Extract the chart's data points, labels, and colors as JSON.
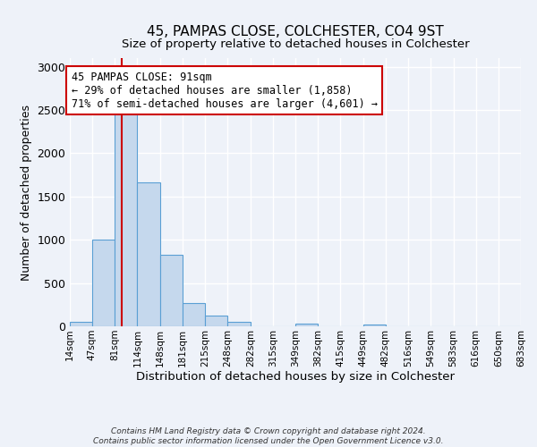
{
  "title": "45, PAMPAS CLOSE, COLCHESTER, CO4 9ST",
  "subtitle": "Size of property relative to detached houses in Colchester",
  "xlabel": "Distribution of detached houses by size in Colchester",
  "ylabel": "Number of detached properties",
  "footnote1": "Contains HM Land Registry data © Crown copyright and database right 2024.",
  "footnote2": "Contains public sector information licensed under the Open Government Licence v3.0.",
  "bar_edges": [
    14,
    47,
    81,
    114,
    148,
    181,
    215,
    248,
    282,
    315,
    349,
    382,
    415,
    449,
    482,
    516,
    549,
    583,
    616,
    650,
    683
  ],
  "bar_heights": [
    55,
    1000,
    2480,
    1660,
    830,
    270,
    125,
    55,
    0,
    0,
    35,
    0,
    0,
    20,
    0,
    0,
    0,
    0,
    0,
    0
  ],
  "bar_color": "#c5d8ed",
  "bar_edge_color": "#5a9fd4",
  "vline_x": 91,
  "vline_color": "#cc0000",
  "annotation_text": "45 PAMPAS CLOSE: 91sqm\n← 29% of detached houses are smaller (1,858)\n71% of semi-detached houses are larger (4,601) →",
  "annotation_box_color": "#ffffff",
  "annotation_box_edge_color": "#cc0000",
  "ylim": [
    0,
    3100
  ],
  "xlim": [
    14,
    683
  ],
  "tick_labels": [
    "14sqm",
    "47sqm",
    "81sqm",
    "114sqm",
    "148sqm",
    "181sqm",
    "215sqm",
    "248sqm",
    "282sqm",
    "315sqm",
    "349sqm",
    "382sqm",
    "415sqm",
    "449sqm",
    "482sqm",
    "516sqm",
    "549sqm",
    "583sqm",
    "616sqm",
    "650sqm",
    "683sqm"
  ],
  "background_color": "#eef2f9",
  "grid_color": "#ffffff"
}
